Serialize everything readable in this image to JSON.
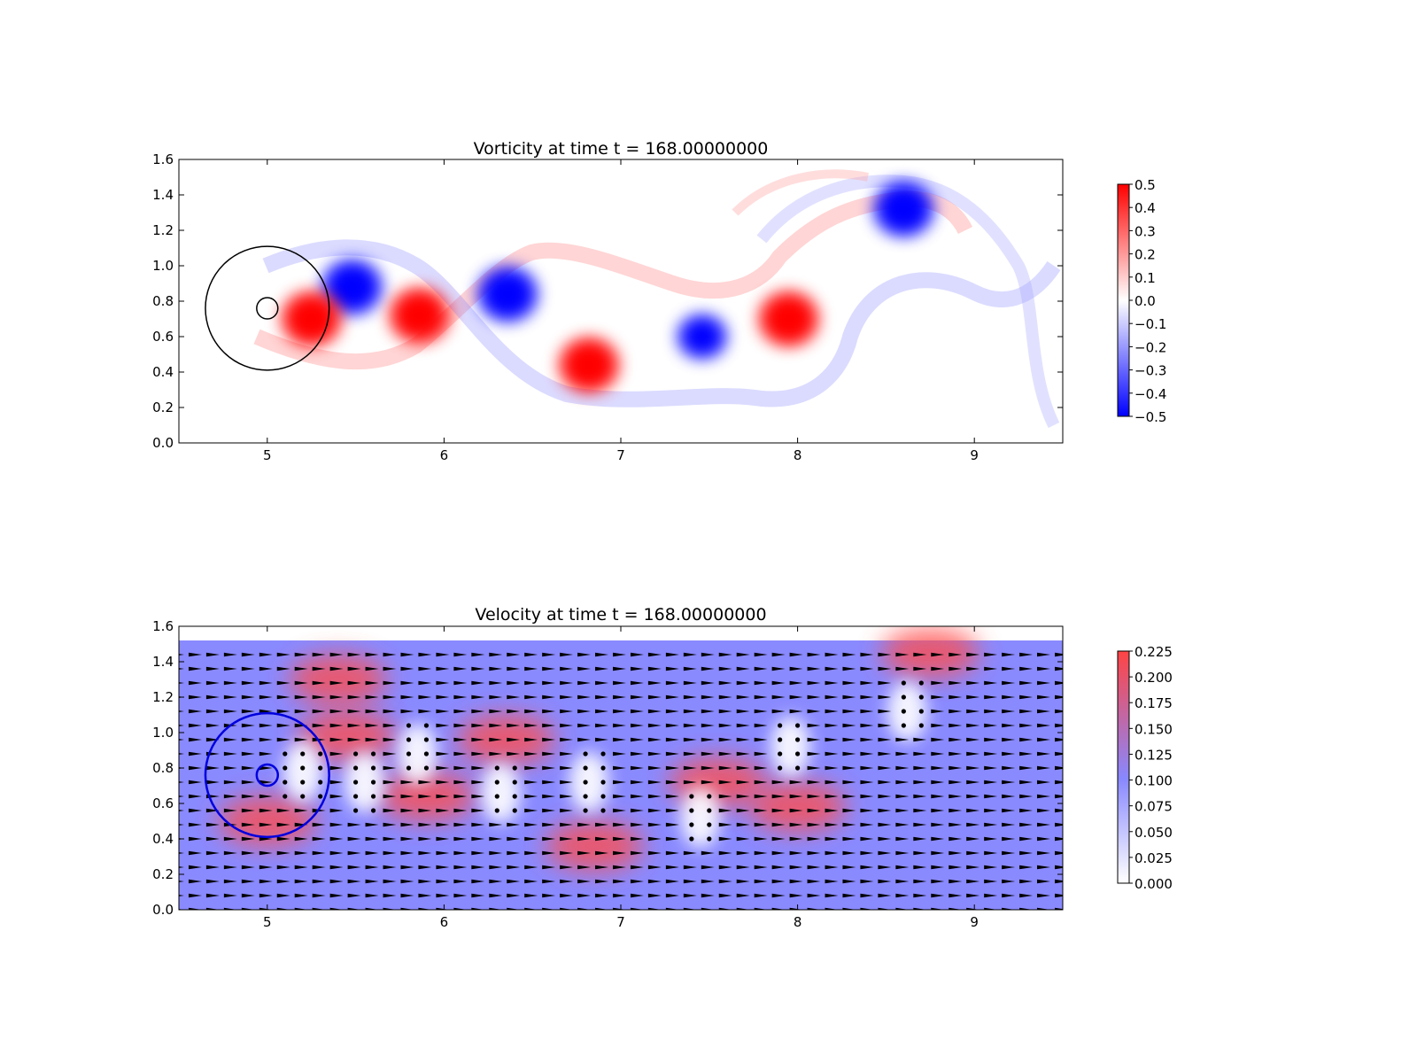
{
  "chart_data": [
    {
      "type": "heatmap",
      "title": "Vorticity at time t =   168.00000000",
      "xlabel": "",
      "ylabel": "",
      "xlim": [
        4.5,
        9.5
      ],
      "ylim": [
        0.0,
        1.6
      ],
      "x_ticks": [
        "5",
        "6",
        "7",
        "8",
        "9"
      ],
      "y_ticks": [
        "0.0",
        "0.2",
        "0.4",
        "0.6",
        "0.8",
        "1.0",
        "1.2",
        "1.4",
        "1.6"
      ],
      "colorbar": {
        "min": -0.5,
        "max": 0.5,
        "ticks": [
          "0.5",
          "0.4",
          "0.3",
          "0.2",
          "0.1",
          "0.0",
          "−0.1",
          "−0.2",
          "−0.3",
          "−0.4",
          "−0.5"
        ],
        "colors": [
          "#0000ff",
          "#ffffff",
          "#ff0000"
        ]
      },
      "vortices": [
        {
          "x": 5.48,
          "y": 0.88,
          "value": -0.5
        },
        {
          "x": 5.25,
          "y": 0.7,
          "value": 0.5
        },
        {
          "x": 5.86,
          "y": 0.72,
          "value": 0.5
        },
        {
          "x": 6.36,
          "y": 0.84,
          "value": -0.5
        },
        {
          "x": 6.82,
          "y": 0.44,
          "value": 0.5
        },
        {
          "x": 7.46,
          "y": 0.6,
          "value": -0.5
        },
        {
          "x": 7.95,
          "y": 0.7,
          "value": 0.5
        },
        {
          "x": 8.6,
          "y": 1.32,
          "value": -0.5
        }
      ],
      "circles": [
        {
          "cx": 5.0,
          "cy": 0.76,
          "r": 0.35
        },
        {
          "cx": 5.0,
          "cy": 0.76,
          "r": 0.06
        }
      ]
    },
    {
      "type": "heatmap",
      "title": "Velocity at time t =   168.00000000",
      "xlabel": "",
      "ylabel": "",
      "xlim": [
        4.5,
        9.5
      ],
      "ylim": [
        0.0,
        1.6
      ],
      "x_ticks": [
        "5",
        "6",
        "7",
        "8",
        "9"
      ],
      "y_ticks": [
        "0.0",
        "0.2",
        "0.4",
        "0.6",
        "0.8",
        "1.0",
        "1.2",
        "1.4",
        "1.6"
      ],
      "field_top": 1.52,
      "colorbar": {
        "min": 0.0,
        "max": 0.23,
        "ticks": [
          "0.225",
          "0.200",
          "0.175",
          "0.150",
          "0.125",
          "0.100",
          "0.075",
          "0.050",
          "0.025",
          "0.000"
        ],
        "colors": [
          "#ffffff",
          "#8888ff",
          "#ff4444"
        ]
      },
      "background_speed": 0.1,
      "high_speed_regions": [
        {
          "x": 8.75,
          "y": 1.45,
          "value": 0.23
        },
        {
          "x": 6.85,
          "y": 0.36,
          "value": 0.23
        },
        {
          "x": 8.0,
          "y": 0.58,
          "value": 0.22
        },
        {
          "x": 7.55,
          "y": 0.72,
          "value": 0.21
        },
        {
          "x": 6.35,
          "y": 0.96,
          "value": 0.21
        },
        {
          "x": 5.45,
          "y": 0.98,
          "value": 0.2
        },
        {
          "x": 5.0,
          "y": 0.5,
          "value": 0.16
        },
        {
          "x": 5.9,
          "y": 0.64,
          "value": 0.19
        },
        {
          "x": 5.4,
          "y": 1.3,
          "value": 0.17
        }
      ],
      "low_speed_regions": [
        {
          "x": 5.2,
          "y": 0.78,
          "value": 0.01
        },
        {
          "x": 5.55,
          "y": 0.72,
          "value": 0.01
        },
        {
          "x": 5.85,
          "y": 0.88,
          "value": 0.01
        },
        {
          "x": 6.32,
          "y": 0.66,
          "value": 0.01
        },
        {
          "x": 6.82,
          "y": 0.72,
          "value": 0.01
        },
        {
          "x": 7.45,
          "y": 0.52,
          "value": 0.02
        },
        {
          "x": 7.96,
          "y": 0.92,
          "value": 0.01
        },
        {
          "x": 8.62,
          "y": 1.12,
          "value": 0.02
        }
      ],
      "circles": [
        {
          "cx": 5.0,
          "cy": 0.76,
          "r": 0.35
        },
        {
          "cx": 5.0,
          "cy": 0.76,
          "r": 0.06
        }
      ]
    }
  ]
}
